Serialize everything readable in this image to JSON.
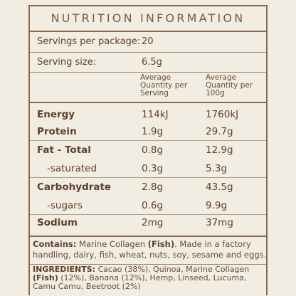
{
  "title": "NUTRITION INFORMATION",
  "servings": {
    "per_package_label": "Servings per package:",
    "per_package_value": "20",
    "size_label": "Serving size:",
    "size_value": "6.5g"
  },
  "columns": {
    "per_serving": "Average Quantity per Serving",
    "per_100g": "Average Quantity per 100g"
  },
  "rows": [
    {
      "label": "Energy",
      "serving": "114kJ",
      "per100": "1760kJ"
    },
    {
      "label": "Protein",
      "serving": "1.9g",
      "per100": "29.7g"
    },
    {
      "label": "Fat - Total",
      "serving": "0.8g",
      "per100": "12.9g"
    },
    {
      "label": "-saturated",
      "serving": "0.3g",
      "per100": "5.3g"
    },
    {
      "label": "Carbohydrate",
      "serving": "2.8g",
      "per100": "43.5g"
    },
    {
      "label": "-sugars",
      "serving": "0.6g",
      "per100": "9.9g"
    },
    {
      "label": "Sodium",
      "serving": "2mg",
      "per100": "37mg"
    }
  ],
  "contains": {
    "label": "Contains:",
    "text_a": "Marine Collagen",
    "bold_b": "(Fish)",
    "text_c": ". Made in a factory handling, dairy, fish, wheat, nuts, soy, sesame and eggs."
  },
  "ingredients": {
    "label": "INGREDIENTS:",
    "text_a": "Cacao (38%), Quinoa, Marine Collagen",
    "bold_b": "(Fish)",
    "text_c": "(12%), Banana (12%), Hemp, Linseed, Lucuma, Camu Camu, Beetroot (2%)"
  }
}
